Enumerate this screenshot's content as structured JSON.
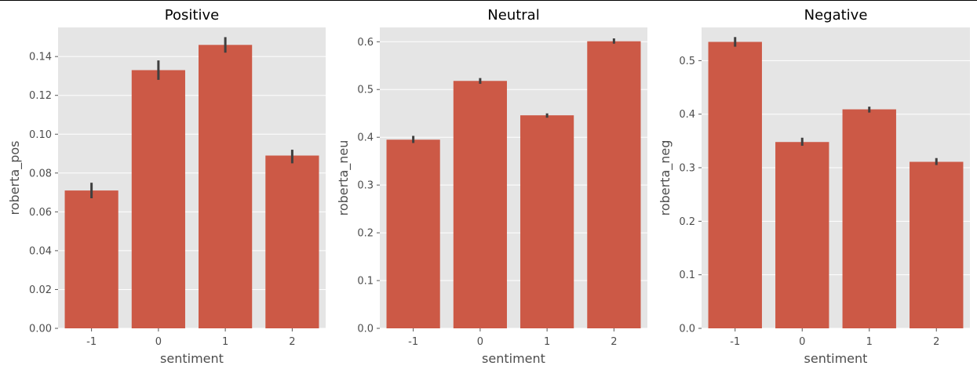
{
  "chart_data": [
    {
      "type": "bar",
      "title": "Positive",
      "xlabel": "sentiment",
      "ylabel": "roberta_pos",
      "categories": [
        "-1",
        "0",
        "1",
        "2"
      ],
      "values": [
        0.071,
        0.133,
        0.146,
        0.089
      ],
      "error_low": [
        0.067,
        0.128,
        0.142,
        0.085
      ],
      "error_high": [
        0.075,
        0.138,
        0.15,
        0.092
      ],
      "ylim": [
        0,
        0.155
      ],
      "yticks": [
        0.0,
        0.02,
        0.04,
        0.06,
        0.08,
        0.1,
        0.12,
        0.14
      ],
      "ytick_labels": [
        "0.00",
        "0.02",
        "0.04",
        "0.06",
        "0.08",
        "0.10",
        "0.12",
        "0.14"
      ],
      "color": "#cc5946",
      "grid": true
    },
    {
      "type": "bar",
      "title": "Neutral",
      "xlabel": "sentiment",
      "ylabel": "roberta_neu",
      "categories": [
        "-1",
        "0",
        "1",
        "2"
      ],
      "values": [
        0.395,
        0.518,
        0.446,
        0.601
      ],
      "error_low": [
        0.388,
        0.512,
        0.441,
        0.596
      ],
      "error_high": [
        0.403,
        0.524,
        0.45,
        0.607
      ],
      "ylim": [
        0,
        0.63
      ],
      "yticks": [
        0.0,
        0.1,
        0.2,
        0.3,
        0.4,
        0.5,
        0.6
      ],
      "ytick_labels": [
        "0.0",
        "0.1",
        "0.2",
        "0.3",
        "0.4",
        "0.5",
        "0.6"
      ],
      "color": "#cc5946",
      "grid": true
    },
    {
      "type": "bar",
      "title": "Negative",
      "xlabel": "sentiment",
      "ylabel": "roberta_neg",
      "categories": [
        "-1",
        "0",
        "1",
        "2"
      ],
      "values": [
        0.535,
        0.348,
        0.409,
        0.311
      ],
      "error_low": [
        0.526,
        0.341,
        0.403,
        0.305
      ],
      "error_high": [
        0.544,
        0.356,
        0.414,
        0.318
      ],
      "ylim": [
        0,
        0.562
      ],
      "yticks": [
        0.0,
        0.1,
        0.2,
        0.3,
        0.4,
        0.5
      ],
      "ytick_labels": [
        "0.0",
        "0.1",
        "0.2",
        "0.3",
        "0.4",
        "0.5"
      ],
      "color": "#cc5946",
      "grid": true
    }
  ]
}
